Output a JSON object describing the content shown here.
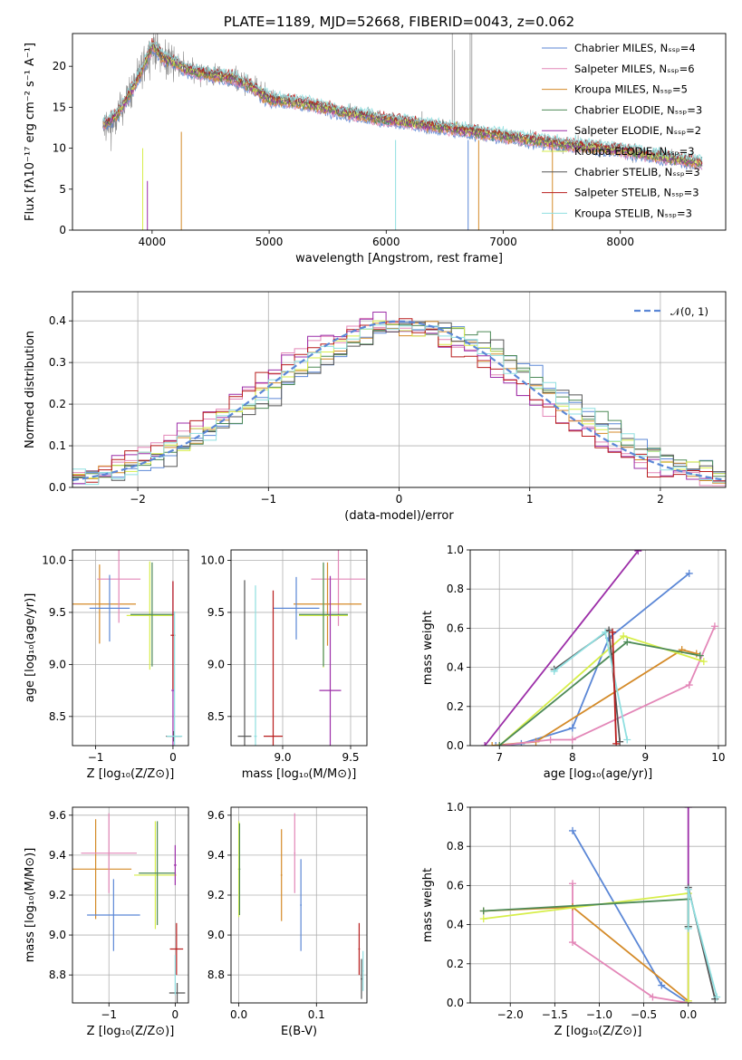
{
  "chart_data": [
    {
      "id": "spectrum",
      "type": "line",
      "title": "PLATE=1189, MJD=52668, FIBERID=0043, z=0.062",
      "xlabel": "wavelength [Angstrom, rest frame]",
      "ylabel": "Flux [fλ10⁻¹⁷ erg cm⁻² s⁻¹ A⁻¹]",
      "xlim": [
        3320,
        8900
      ],
      "ylim": [
        0,
        24
      ],
      "xticks": [
        "4000",
        "5000",
        "6000",
        "7000",
        "8000"
      ],
      "yticks": [
        "0",
        "5",
        "10",
        "15",
        "20"
      ],
      "legend": "upper-right",
      "series": [
        {
          "name": "Chabrier MILES, Nₛₛₚ=4",
          "color": "#5b87d6"
        },
        {
          "name": "Salpeter MILES, Nₛₛₚ=6",
          "color": "#e387b8"
        },
        {
          "name": "Kroupa MILES, Nₛₛₚ=5",
          "color": "#d48a28"
        },
        {
          "name": "Chabrier ELODIE, Nₛₛₚ=3",
          "color": "#4d8a57"
        },
        {
          "name": "Salpeter ELODIE, Nₛₛₚ=2",
          "color": "#9c2ea8"
        },
        {
          "name": "Kroupa ELODIE, Nₛₛₚ=3",
          "color": "#d7ee4a"
        },
        {
          "name": "Chabrier STELIB, Nₛₛₚ=3",
          "color": "#555555"
        },
        {
          "name": "Salpeter STELIB, Nₛₛₚ=3",
          "color": "#b81c1c"
        },
        {
          "name": "Kroupa STELIB, Nₛₛₚ=3",
          "color": "#8fdfe0"
        }
      ],
      "data_color": "#888888",
      "continuum": {
        "x": [
          3600,
          3700,
          3800,
          3900,
          4000,
          4100,
          4200,
          4300,
          4500,
          4700,
          4850,
          5000,
          5300,
          5600,
          6000,
          6500,
          7000,
          7500,
          8000,
          8400,
          8700
        ],
        "y": [
          13,
          14,
          16.5,
          19,
          22.5,
          21,
          20.5,
          19.5,
          19,
          18.5,
          17.5,
          16,
          15.5,
          14.5,
          13.5,
          12.5,
          11.5,
          10.5,
          9.8,
          8.8,
          8.2
        ]
      }
    },
    {
      "id": "residuals",
      "type": "step",
      "xlabel": "(data-model)/error",
      "ylabel": "Normed distribution",
      "xlim": [
        -2.5,
        2.5
      ],
      "ylim": [
        0,
        0.47
      ],
      "xticks": [
        "−2",
        "−1",
        "0",
        "1",
        "2"
      ],
      "yticks": [
        "0.0",
        "0.1",
        "0.2",
        "0.3",
        "0.4"
      ],
      "reference": {
        "name": "𝒩(0, 1)",
        "color": "#5b87d6",
        "style": "dashed"
      },
      "legend": "upper-right",
      "bin_width": 0.1
    },
    {
      "id": "age-vs-Z",
      "type": "errorbar",
      "xlabel": "Z [log₁₀(Z/Z⊙)]",
      "ylabel": "age  [log₁₀(age/yr)]",
      "xlim": [
        -1.3,
        0.2
      ],
      "ylim": [
        8.22,
        10.1
      ],
      "xticks": [
        "−1",
        "0"
      ],
      "yticks": [
        "8.5",
        "9.0",
        "9.5",
        "10.0"
      ],
      "points": [
        {
          "color": "#d48a28",
          "x": -0.95,
          "xerr": 0.47,
          "y": 9.58,
          "yerr": 0.38
        },
        {
          "color": "#e387b8",
          "x": -0.7,
          "xerr": 0.28,
          "y": 9.82,
          "yerr": 0.42
        },
        {
          "color": "#5b87d6",
          "x": -0.82,
          "xerr": 0.26,
          "y": 9.54,
          "yerr": 0.32
        },
        {
          "color": "#d7ee4a",
          "x": -0.3,
          "xerr": 0.3,
          "y": 9.47,
          "yerr": 0.52
        },
        {
          "color": "#4d8a57",
          "x": -0.27,
          "xerr": 0.28,
          "y": 9.48,
          "yerr": 0.5
        },
        {
          "color": "#9c2ea8",
          "x": 0.0,
          "xerr": 0.02,
          "y": 8.75,
          "yerr": 1.05
        },
        {
          "color": "#b81c1c",
          "x": 0.0,
          "xerr": 0.03,
          "y": 9.28,
          "yerr": 0.52
        },
        {
          "color": "#555555",
          "x": 0.01,
          "xerr": 0.1,
          "y": 8.31,
          "yerr": 0.05
        },
        {
          "color": "#8fdfe0",
          "x": 0.02,
          "xerr": 0.1,
          "y": 8.31,
          "yerr": 1.2
        }
      ]
    },
    {
      "id": "age-vs-mass",
      "type": "errorbar",
      "xlabel": "mass [log₁₀(M/M⊙)]",
      "ylabel": "",
      "xlim": [
        8.62,
        9.62
      ],
      "ylim": [
        8.22,
        10.1
      ],
      "xticks": [
        "9.0",
        "9.5"
      ],
      "yticks": [
        "8.5",
        "9.0",
        "9.5",
        "10.0"
      ],
      "points": [
        {
          "color": "#e387b8",
          "x": 9.41,
          "xerr": 0.2,
          "y": 9.82,
          "yerr": 0.45
        },
        {
          "color": "#d48a28",
          "x": 9.33,
          "xerr": 0.25,
          "y": 9.58,
          "yerr": 0.4
        },
        {
          "color": "#5b87d6",
          "x": 9.1,
          "xerr": 0.17,
          "y": 9.54,
          "yerr": 0.3
        },
        {
          "color": "#d7ee4a",
          "x": 9.3,
          "xerr": 0.18,
          "y": 9.47,
          "yerr": 0.5
        },
        {
          "color": "#4d8a57",
          "x": 9.3,
          "xerr": 0.18,
          "y": 9.48,
          "yerr": 0.5
        },
        {
          "color": "#9c2ea8",
          "x": 9.35,
          "xerr": 0.08,
          "y": 8.75,
          "yerr": 1.1
        },
        {
          "color": "#b81c1c",
          "x": 8.93,
          "xerr": 0.07,
          "y": 8.31,
          "yerr": 1.4
        },
        {
          "color": "#555555",
          "x": 8.72,
          "xerr": 0.05,
          "y": 8.31,
          "yerr": 1.5
        },
        {
          "color": "#8fdfe0",
          "x": 8.8,
          "xerr": 0.01,
          "y": 8.31,
          "yerr": 1.45
        }
      ]
    },
    {
      "id": "weight-vs-age",
      "type": "line",
      "xlabel": "age  [log₁₀(age/yr)]",
      "ylabel": "mass weight",
      "xlim": [
        6.6,
        10.1
      ],
      "ylim": [
        0,
        1
      ],
      "xticks": [
        "7",
        "8",
        "9",
        "10"
      ],
      "yticks": [
        "0.0",
        "0.2",
        "0.4",
        "0.6",
        "0.8",
        "1.0"
      ],
      "series": [
        {
          "color": "#9c2ea8",
          "x": [
            6.8,
            8.9
          ],
          "y": [
            0.0,
            0.995
          ]
        },
        {
          "color": "#5b87d6",
          "x": [
            6.95,
            7.3,
            8.0,
            8.5,
            9.6
          ],
          "y": [
            0.0,
            0.01,
            0.09,
            0.55,
            0.88
          ]
        },
        {
          "color": "#d48a28",
          "x": [
            6.9,
            7.5,
            9.5,
            9.7
          ],
          "y": [
            0.0,
            0.02,
            0.49,
            0.47
          ]
        },
        {
          "color": "#e387b8",
          "x": [
            7.0,
            7.7,
            8.0,
            9.6,
            9.95
          ],
          "y": [
            0.0,
            0.03,
            0.03,
            0.31,
            0.61
          ]
        },
        {
          "color": "#d7ee4a",
          "x": [
            7.0,
            8.7,
            9.8
          ],
          "y": [
            0.0,
            0.56,
            0.43
          ]
        },
        {
          "color": "#4d8a57",
          "x": [
            7.0,
            8.75,
            9.75
          ],
          "y": [
            0.0,
            0.53,
            0.46
          ]
        },
        {
          "color": "#555555",
          "x": [
            7.75,
            8.5,
            8.65
          ],
          "y": [
            0.39,
            0.59,
            0.02
          ]
        },
        {
          "color": "#8fdfe0",
          "x": [
            7.75,
            8.45,
            8.75
          ],
          "y": [
            0.38,
            0.58,
            0.03
          ]
        },
        {
          "color": "#b81c1c",
          "x": [
            8.55,
            8.6
          ],
          "y": [
            0.58,
            0.01
          ]
        }
      ]
    },
    {
      "id": "mass-vs-Z",
      "type": "errorbar",
      "xlabel": "Z [log₁₀(Z/Z⊙)]",
      "ylabel": "mass [log₁₀(M/M⊙)]",
      "xlim": [
        -1.55,
        0.2
      ],
      "ylim": [
        8.66,
        9.64
      ],
      "xticks": [
        "−1",
        "0"
      ],
      "yticks": [
        "8.8",
        "9.0",
        "9.2",
        "9.4",
        "9.6"
      ],
      "points": [
        {
          "color": "#d48a28",
          "x": -1.2,
          "xerr": 0.54,
          "y": 9.33,
          "yerr": 0.25
        },
        {
          "color": "#e387b8",
          "x": -1.0,
          "xerr": 0.42,
          "y": 9.41,
          "yerr": 0.2
        },
        {
          "color": "#5b87d6",
          "x": -0.93,
          "xerr": 0.4,
          "y": 9.1,
          "yerr": 0.18
        },
        {
          "color": "#d7ee4a",
          "x": -0.3,
          "xerr": 0.32,
          "y": 9.3,
          "yerr": 0.27
        },
        {
          "color": "#4d8a57",
          "x": -0.27,
          "xerr": 0.28,
          "y": 9.31,
          "yerr": 0.26
        },
        {
          "color": "#9c2ea8",
          "x": 0.0,
          "xerr": 0.02,
          "y": 9.35,
          "yerr": 0.1
        },
        {
          "color": "#b81c1c",
          "x": 0.02,
          "xerr": 0.1,
          "y": 8.93,
          "yerr": 0.13
        },
        {
          "color": "#555555",
          "x": 0.03,
          "xerr": 0.12,
          "y": 8.71,
          "yerr": 0.05
        },
        {
          "color": "#8fdfe0",
          "x": 0.0,
          "xerr": 0.01,
          "y": 8.8,
          "yerr": 0.1
        }
      ]
    },
    {
      "id": "mass-vs-EBV",
      "type": "errorbar",
      "xlabel": "E(B-V)",
      "ylabel": "",
      "xlim": [
        -0.01,
        0.165
      ],
      "ylim": [
        8.66,
        9.64
      ],
      "xticks": [
        "0.0",
        "0.1"
      ],
      "yticks": [
        "8.8",
        "9.0",
        "9.2",
        "9.4",
        "9.6"
      ],
      "points": [
        {
          "color": "#d7ee4a",
          "x": 0.0,
          "xerr": 0.001,
          "y": 9.33,
          "yerr": 0.24
        },
        {
          "color": "#4d8a57",
          "x": 0.001,
          "xerr": 0.001,
          "y": 9.33,
          "yerr": 0.23
        },
        {
          "color": "#d48a28",
          "x": 0.055,
          "xerr": 0.001,
          "y": 9.3,
          "yerr": 0.23
        },
        {
          "color": "#e387b8",
          "x": 0.072,
          "xerr": 0.001,
          "y": 9.41,
          "yerr": 0.2
        },
        {
          "color": "#5b87d6",
          "x": 0.08,
          "xerr": 0.001,
          "y": 9.15,
          "yerr": 0.23
        },
        {
          "color": "#b81c1c",
          "x": 0.155,
          "xerr": 0.001,
          "y": 8.93,
          "yerr": 0.13
        },
        {
          "color": "#555555",
          "x": 0.158,
          "xerr": 0.001,
          "y": 8.78,
          "yerr": 0.1
        },
        {
          "color": "#8fdfe0",
          "x": 0.16,
          "xerr": 0.001,
          "y": 8.82,
          "yerr": 0.1
        }
      ]
    },
    {
      "id": "weight-vs-Z",
      "type": "line",
      "xlabel": "Z [log₁₀(Z/Z⊙)]",
      "ylabel": "mass weight",
      "xlim": [
        -2.45,
        0.42
      ],
      "ylim": [
        0,
        1
      ],
      "xticks": [
        "−2.0",
        "−1.5",
        "−1.0",
        "−0.5",
        "0.0"
      ],
      "yticks": [
        "0.0",
        "0.2",
        "0.4",
        "0.6",
        "0.8",
        "1.0"
      ],
      "series": [
        {
          "color": "#9c2ea8",
          "x": [
            0.0,
            0.0
          ],
          "y": [
            0.0,
            1.0
          ]
        },
        {
          "color": "#5b87d6",
          "x": [
            -1.3,
            -0.3,
            0.0
          ],
          "y": [
            0.88,
            0.09,
            0.0
          ]
        },
        {
          "color": "#e387b8",
          "x": [
            -1.3,
            -1.3,
            -0.4,
            0.0
          ],
          "y": [
            0.61,
            0.31,
            0.03,
            0.0
          ]
        },
        {
          "color": "#d48a28",
          "x": [
            -2.3,
            -1.3,
            0.0
          ],
          "y": [
            0.47,
            0.49,
            0.01
          ]
        },
        {
          "color": "#d7ee4a",
          "x": [
            -2.3,
            0.0,
            0.0
          ],
          "y": [
            0.43,
            0.56,
            0.01
          ]
        },
        {
          "color": "#4d8a57",
          "x": [
            -2.3,
            0.0,
            0.0
          ],
          "y": [
            0.47,
            0.53,
            0.39
          ]
        },
        {
          "color": "#555555",
          "x": [
            0.0,
            0.0,
            0.3
          ],
          "y": [
            0.39,
            0.59,
            0.02
          ]
        },
        {
          "color": "#8fdfe0",
          "x": [
            0.0,
            0.0,
            0.32
          ],
          "y": [
            0.38,
            0.58,
            0.03
          ]
        }
      ]
    }
  ]
}
